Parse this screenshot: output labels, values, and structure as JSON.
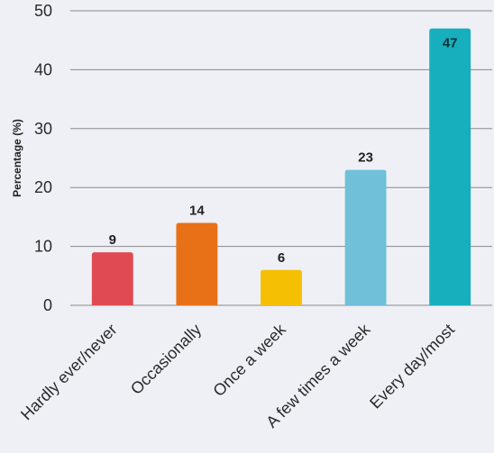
{
  "chart_data": {
    "type": "bar",
    "title": "",
    "xlabel": "",
    "ylabel": "Percentage (%)",
    "ylim": [
      0,
      50
    ],
    "yticks": [
      0,
      10,
      20,
      30,
      40,
      50
    ],
    "grid": true,
    "categories": [
      "Hardly ever/never",
      "Occasionally",
      "Once a week",
      "A few times a week",
      "Every day/most"
    ],
    "values": [
      9,
      14,
      6,
      23,
      47
    ],
    "colors": [
      "#e04b53",
      "#e87118",
      "#f5bf03",
      "#6fc0d8",
      "#17aebd"
    ],
    "label_positions": [
      "above",
      "above",
      "above",
      "above",
      "inside"
    ]
  }
}
